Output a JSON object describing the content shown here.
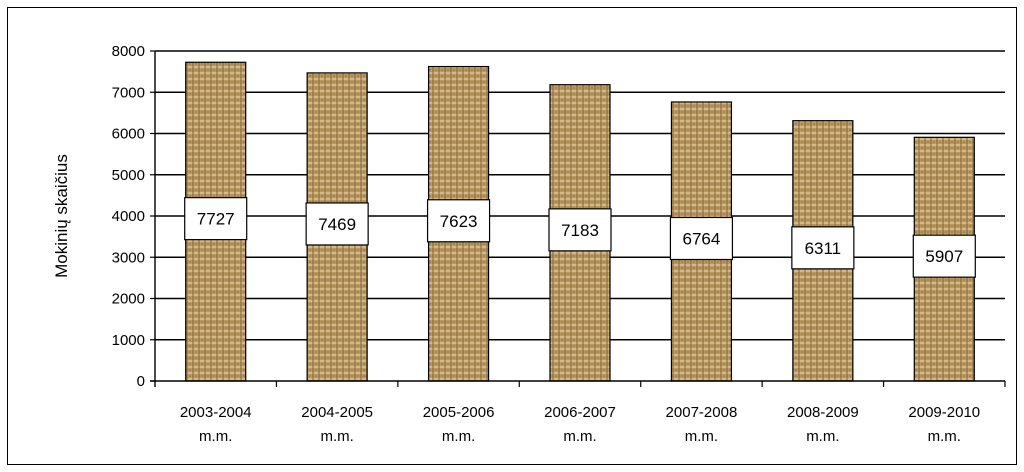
{
  "chart_data": {
    "type": "bar",
    "title": "",
    "xlabel": "",
    "ylabel": "Mokinių skaičius",
    "ylim": [
      0,
      8000
    ],
    "yticks": [
      0,
      1000,
      2000,
      3000,
      4000,
      5000,
      6000,
      7000,
      8000
    ],
    "grid": true,
    "legend": "none",
    "categories": [
      [
        "2003-2004",
        "m.m."
      ],
      [
        "2004-2005",
        "m.m."
      ],
      [
        "2005-2006",
        "m.m."
      ],
      [
        "2006-2007",
        "m.m."
      ],
      [
        "2007-2008",
        "m.m."
      ],
      [
        "2008-2009",
        "m.m."
      ],
      [
        "2009-2010",
        "m.m."
      ]
    ],
    "values": [
      7727,
      7469,
      7623,
      7183,
      6764,
      6311,
      5907
    ],
    "data_labels": [
      "7727",
      "7469",
      "7623",
      "7183",
      "6764",
      "6311",
      "5907"
    ],
    "colors": {
      "bar_base": "#bb9a62",
      "bar_light": "#e6d3a8",
      "bar_dark": "#7a5a30",
      "axis": "#000000",
      "grid": "#000000",
      "label_box": "#ffffff"
    }
  }
}
